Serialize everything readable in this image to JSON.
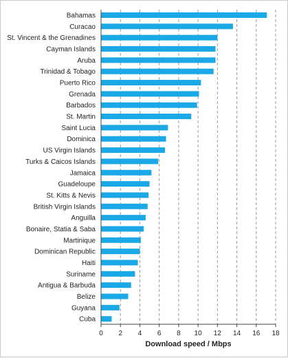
{
  "chart_data": {
    "type": "bar",
    "orientation": "horizontal",
    "xlabel": "Download speed / Mbps",
    "xlim": [
      0,
      18
    ],
    "xticks": [
      0,
      2,
      4,
      6,
      8,
      10,
      12,
      14,
      16,
      18
    ],
    "grid": "vertical dashed",
    "bar_color": "#1aa8e6",
    "categories": [
      "Bahamas",
      "Curacao",
      "St. Vincent & the Grenadines",
      "Cayman Islands",
      "Aruba",
      "Trinidad & Tobago",
      "Puerto Rico",
      "Grenada",
      "Barbados",
      "St. Martin",
      "Saint Lucia",
      "Dominica",
      "US Virgin Islands",
      "Turks & Caicos Islands",
      "Jamaica",
      "Guadeloupe",
      "St. Kitts & Nevis",
      "British Virgin Islands",
      "Anguilla",
      "Bonaire, Statia & Saba",
      "Martinique",
      "Dominican Republic",
      "Haiti",
      "Suriname",
      "Antigua & Barbuda",
      "Belize",
      "Guyana",
      "Cuba"
    ],
    "values": [
      17.1,
      13.6,
      12.0,
      11.8,
      11.8,
      11.6,
      10.3,
      10.1,
      9.9,
      9.3,
      6.9,
      6.7,
      6.6,
      5.9,
      5.2,
      5.0,
      4.9,
      4.8,
      4.6,
      4.4,
      4.1,
      4.0,
      3.8,
      3.5,
      3.1,
      2.8,
      1.9,
      1.1
    ]
  }
}
